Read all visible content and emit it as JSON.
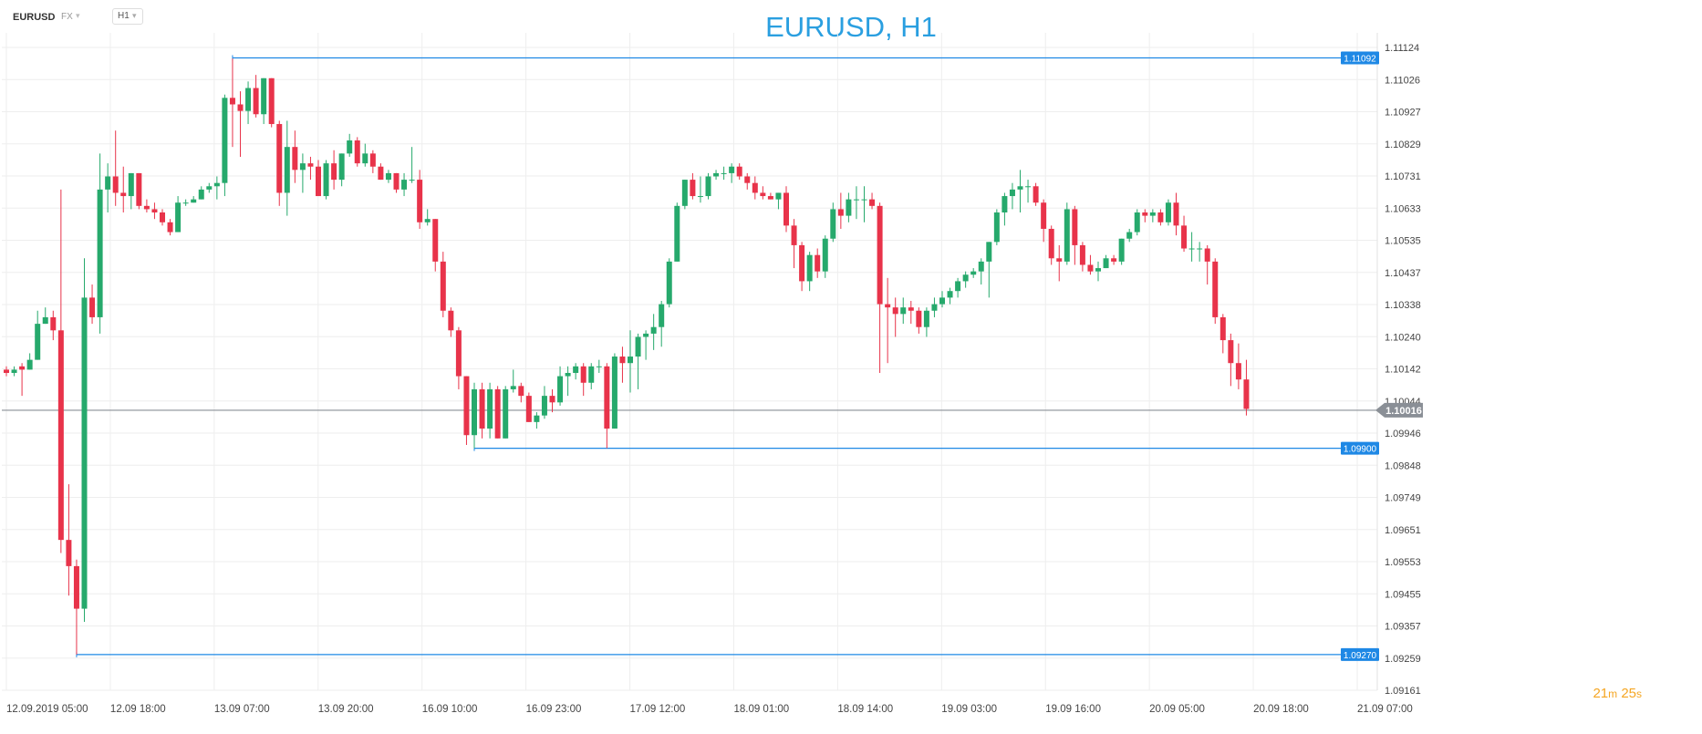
{
  "toolbar": {
    "symbol": "EURUSD",
    "market": "FX",
    "timeframe": "H1"
  },
  "colors": {
    "bullish": "#26a96c",
    "bearish": "#e8334a",
    "level": "#1e88e5",
    "current": "#8a8f96",
    "grid": "#eeeeee",
    "title": "#2a9fe0",
    "countdown": "#f5a623"
  },
  "countdown": {
    "minutes": "21",
    "minutes_unit": "m",
    "seconds": "25",
    "seconds_unit": "s"
  },
  "chart_data": {
    "type": "candlestick",
    "title": "EURUSD, H1",
    "ylim": [
      1.09161,
      1.11124
    ],
    "y_ticks": [
      "1.11124",
      "1.11026",
      "1.10927",
      "1.10829",
      "1.10731",
      "1.10633",
      "1.10535",
      "1.10437",
      "1.10338",
      "1.10240",
      "1.10142",
      "1.10044",
      "1.09946",
      "1.09848",
      "1.09749",
      "1.09651",
      "1.09553",
      "1.09455",
      "1.09357",
      "1.09259",
      "1.09161"
    ],
    "x_ticks": [
      "12.09.2019  05:00",
      "12.09  18:00",
      "13.09  07:00",
      "13.09  20:00",
      "16.09  10:00",
      "16.09  23:00",
      "17.09  12:00",
      "18.09  01:00",
      "18.09  14:00",
      "19.09  03:00",
      "19.09  16:00",
      "20.09  05:00",
      "20.09  18:00",
      "21.09  07:00"
    ],
    "levels": [
      {
        "label": "1.11092",
        "value": 1.11092,
        "from_candle": 29
      },
      {
        "label": "1.09900",
        "value": 1.099,
        "from_candle": 60
      },
      {
        "label": "1.09270",
        "value": 1.0927,
        "from_candle": 9
      }
    ],
    "current_price": {
      "label": "1.10016",
      "value": 1.10016
    },
    "grid": true,
    "candles": [
      [
        1.1014,
        1.1015,
        1.1012,
        1.1013
      ],
      [
        1.1013,
        1.1015,
        1.1012,
        1.1014
      ],
      [
        1.1015,
        1.1016,
        1.1006,
        1.1014
      ],
      [
        1.1014,
        1.1019,
        1.1014,
        1.1017
      ],
      [
        1.1017,
        1.1032,
        1.1017,
        1.1028
      ],
      [
        1.1028,
        1.1033,
        1.1028,
        1.103
      ],
      [
        1.103,
        1.1032,
        1.1023,
        1.1026
      ],
      [
        1.1026,
        1.1069,
        1.0958,
        1.0962
      ],
      [
        1.0962,
        1.0979,
        1.0945,
        1.0954
      ],
      [
        1.0954,
        1.0956,
        1.0927,
        1.0941
      ],
      [
        1.0941,
        1.1048,
        1.0937,
        1.1036
      ],
      [
        1.1036,
        1.104,
        1.1028,
        1.103
      ],
      [
        1.103,
        1.108,
        1.1025,
        1.1069
      ],
      [
        1.1069,
        1.1077,
        1.1062,
        1.1073
      ],
      [
        1.1073,
        1.1087,
        1.1064,
        1.1068
      ],
      [
        1.1068,
        1.1076,
        1.1062,
        1.1067
      ],
      [
        1.1067,
        1.1074,
        1.1063,
        1.1074
      ],
      [
        1.1074,
        1.1074,
        1.1063,
        1.1064
      ],
      [
        1.1064,
        1.1066,
        1.1062,
        1.1063
      ],
      [
        1.1063,
        1.1065,
        1.106,
        1.1062
      ],
      [
        1.1062,
        1.1063,
        1.1058,
        1.1059
      ],
      [
        1.1059,
        1.106,
        1.1055,
        1.1056
      ],
      [
        1.1056,
        1.1067,
        1.1056,
        1.1065
      ],
      [
        1.1065,
        1.1066,
        1.1064,
        1.1065
      ],
      [
        1.1065,
        1.1067,
        1.1065,
        1.1066
      ],
      [
        1.1066,
        1.107,
        1.1066,
        1.1069
      ],
      [
        1.1069,
        1.1071,
        1.1068,
        1.107
      ],
      [
        1.107,
        1.1073,
        1.1066,
        1.1071
      ],
      [
        1.1071,
        1.1098,
        1.1067,
        1.1097
      ],
      [
        1.1097,
        1.1109,
        1.1082,
        1.1095
      ],
      [
        1.1095,
        1.1099,
        1.1079,
        1.1093
      ],
      [
        1.1093,
        1.1102,
        1.1089,
        1.11
      ],
      [
        1.11,
        1.1104,
        1.1091,
        1.1092
      ],
      [
        1.1092,
        1.1103,
        1.1089,
        1.1103
      ],
      [
        1.1103,
        1.1103,
        1.1088,
        1.1089
      ],
      [
        1.1089,
        1.109,
        1.1064,
        1.1068
      ],
      [
        1.1068,
        1.109,
        1.1061,
        1.1082
      ],
      [
        1.1082,
        1.1087,
        1.1071,
        1.1075
      ],
      [
        1.1075,
        1.108,
        1.1068,
        1.1077
      ],
      [
        1.1077,
        1.1079,
        1.1072,
        1.1076
      ],
      [
        1.1076,
        1.1078,
        1.1067,
        1.1067
      ],
      [
        1.1067,
        1.1078,
        1.1066,
        1.1077
      ],
      [
        1.1077,
        1.1081,
        1.1069,
        1.1072
      ],
      [
        1.1072,
        1.108,
        1.107,
        1.108
      ],
      [
        1.108,
        1.1086,
        1.1079,
        1.1084
      ],
      [
        1.1084,
        1.1085,
        1.1076,
        1.1077
      ],
      [
        1.1077,
        1.1083,
        1.1076,
        1.108
      ],
      [
        1.108,
        1.1081,
        1.1074,
        1.1076
      ],
      [
        1.1076,
        1.1077,
        1.1072,
        1.1072
      ],
      [
        1.1072,
        1.1075,
        1.1071,
        1.1074
      ],
      [
        1.1074,
        1.1074,
        1.1068,
        1.1069
      ],
      [
        1.1069,
        1.1074,
        1.1067,
        1.1072
      ],
      [
        1.1072,
        1.1082,
        1.1071,
        1.1072
      ],
      [
        1.1072,
        1.1075,
        1.1057,
        1.1059
      ],
      [
        1.1059,
        1.1063,
        1.1058,
        1.106
      ],
      [
        1.106,
        1.106,
        1.1044,
        1.1047
      ],
      [
        1.1047,
        1.105,
        1.103,
        1.1032
      ],
      [
        1.1032,
        1.1033,
        1.1024,
        1.1026
      ],
      [
        1.1026,
        1.1027,
        1.1008,
        1.1012
      ],
      [
        1.1012,
        1.1012,
        1.0991,
        1.0994
      ],
      [
        1.0994,
        1.101,
        1.099,
        1.1008
      ],
      [
        1.1008,
        1.101,
        1.0993,
        1.0996
      ],
      [
        1.0996,
        1.101,
        1.0993,
        1.1008
      ],
      [
        1.1008,
        1.1009,
        1.0993,
        1.0993
      ],
      [
        1.0993,
        1.1009,
        1.0993,
        1.1008
      ],
      [
        1.1008,
        1.1014,
        1.1007,
        1.1009
      ],
      [
        1.1009,
        1.101,
        1.1004,
        1.1006
      ],
      [
        1.1006,
        1.1007,
        1.0998,
        1.0998
      ],
      [
        1.0998,
        1.1001,
        1.0996,
        1.1
      ],
      [
        1.1,
        1.1009,
        1.0999,
        1.1006
      ],
      [
        1.1006,
        1.1008,
        1.1001,
        1.1004
      ],
      [
        1.1004,
        1.1015,
        1.1003,
        1.1012
      ],
      [
        1.1012,
        1.1015,
        1.1006,
        1.1013
      ],
      [
        1.1013,
        1.1016,
        1.1011,
        1.1015
      ],
      [
        1.1015,
        1.1016,
        1.1006,
        1.101
      ],
      [
        1.101,
        1.1016,
        1.1008,
        1.1015
      ],
      [
        1.1015,
        1.1017,
        1.1013,
        1.1015
      ],
      [
        1.1015,
        1.1016,
        1.099,
        1.0996
      ],
      [
        1.0996,
        1.1019,
        1.0996,
        1.1018
      ],
      [
        1.1018,
        1.1021,
        1.101,
        1.1016
      ],
      [
        1.1016,
        1.1026,
        1.1007,
        1.1018
      ],
      [
        1.1018,
        1.1025,
        1.1008,
        1.1024
      ],
      [
        1.1024,
        1.1026,
        1.1017,
        1.1025
      ],
      [
        1.1025,
        1.1031,
        1.102,
        1.1027
      ],
      [
        1.1027,
        1.1035,
        1.1021,
        1.1034
      ],
      [
        1.1034,
        1.1048,
        1.1033,
        1.1047
      ],
      [
        1.1047,
        1.1065,
        1.1047,
        1.1064
      ],
      [
        1.1064,
        1.1072,
        1.1063,
        1.1072
      ],
      [
        1.1072,
        1.1074,
        1.1066,
        1.1067
      ],
      [
        1.1067,
        1.1073,
        1.1065,
        1.1067
      ],
      [
        1.1067,
        1.1074,
        1.1066,
        1.1073
      ],
      [
        1.1073,
        1.1075,
        1.1072,
        1.1074
      ],
      [
        1.1074,
        1.1076,
        1.1072,
        1.1074
      ],
      [
        1.1074,
        1.1077,
        1.1071,
        1.1076
      ],
      [
        1.1076,
        1.1077,
        1.1072,
        1.1073
      ],
      [
        1.1073,
        1.1074,
        1.1069,
        1.1071
      ],
      [
        1.1071,
        1.1073,
        1.1066,
        1.1068
      ],
      [
        1.1068,
        1.107,
        1.1066,
        1.1067
      ],
      [
        1.1067,
        1.1068,
        1.1066,
        1.1066
      ],
      [
        1.1066,
        1.1068,
        1.1063,
        1.1068
      ],
      [
        1.1068,
        1.107,
        1.1056,
        1.1058
      ],
      [
        1.1058,
        1.106,
        1.1045,
        1.1052
      ],
      [
        1.1052,
        1.1053,
        1.1038,
        1.1041
      ],
      [
        1.1041,
        1.105,
        1.1038,
        1.1049
      ],
      [
        1.1049,
        1.1051,
        1.1042,
        1.1044
      ],
      [
        1.1044,
        1.1055,
        1.1042,
        1.1054
      ],
      [
        1.1054,
        1.1065,
        1.1053,
        1.1063
      ],
      [
        1.1063,
        1.1068,
        1.1057,
        1.1061
      ],
      [
        1.1061,
        1.1068,
        1.1059,
        1.1066
      ],
      [
        1.1066,
        1.107,
        1.106,
        1.1066
      ],
      [
        1.1066,
        1.107,
        1.1059,
        1.1066
      ],
      [
        1.1066,
        1.1068,
        1.1063,
        1.1064
      ],
      [
        1.1064,
        1.1065,
        1.1013,
        1.1034
      ],
      [
        1.1034,
        1.1042,
        1.1016,
        1.1033
      ],
      [
        1.1033,
        1.1036,
        1.1024,
        1.1031
      ],
      [
        1.1031,
        1.1036,
        1.1028,
        1.1033
      ],
      [
        1.1033,
        1.1035,
        1.1028,
        1.1032
      ],
      [
        1.1032,
        1.1033,
        1.1025,
        1.1027
      ],
      [
        1.1027,
        1.1033,
        1.1024,
        1.1032
      ],
      [
        1.1032,
        1.1036,
        1.103,
        1.1034
      ],
      [
        1.1034,
        1.1038,
        1.1033,
        1.1036
      ],
      [
        1.1036,
        1.1039,
        1.1034,
        1.1038
      ],
      [
        1.1038,
        1.1042,
        1.1036,
        1.1041
      ],
      [
        1.1041,
        1.1044,
        1.1039,
        1.1043
      ],
      [
        1.1043,
        1.1045,
        1.1042,
        1.1044
      ],
      [
        1.1044,
        1.1048,
        1.104,
        1.1047
      ],
      [
        1.1047,
        1.1053,
        1.1036,
        1.1053
      ],
      [
        1.1053,
        1.1063,
        1.1052,
        1.1062
      ],
      [
        1.1062,
        1.1068,
        1.1058,
        1.1067
      ],
      [
        1.1067,
        1.1071,
        1.1063,
        1.1069
      ],
      [
        1.1069,
        1.1075,
        1.1062,
        1.107
      ],
      [
        1.107,
        1.1072,
        1.1065,
        1.107
      ],
      [
        1.107,
        1.1071,
        1.1064,
        1.1065
      ],
      [
        1.1065,
        1.1066,
        1.1053,
        1.1057
      ],
      [
        1.1057,
        1.1058,
        1.1046,
        1.1048
      ],
      [
        1.1048,
        1.1052,
        1.1041,
        1.1047
      ],
      [
        1.1047,
        1.1065,
        1.1046,
        1.1063
      ],
      [
        1.1063,
        1.1064,
        1.1046,
        1.1052
      ],
      [
        1.1052,
        1.1053,
        1.1044,
        1.1046
      ],
      [
        1.1046,
        1.1049,
        1.1043,
        1.1044
      ],
      [
        1.1044,
        1.1047,
        1.1041,
        1.1045
      ],
      [
        1.1045,
        1.1049,
        1.1045,
        1.1048
      ],
      [
        1.1048,
        1.1049,
        1.1046,
        1.1047
      ],
      [
        1.1047,
        1.1054,
        1.1046,
        1.1054
      ],
      [
        1.1054,
        1.1057,
        1.1053,
        1.1056
      ],
      [
        1.1056,
        1.1063,
        1.1055,
        1.1062
      ],
      [
        1.1062,
        1.1063,
        1.1059,
        1.1061
      ],
      [
        1.1061,
        1.1063,
        1.1059,
        1.1062
      ],
      [
        1.1062,
        1.1063,
        1.1058,
        1.1059
      ],
      [
        1.1059,
        1.1066,
        1.1058,
        1.1065
      ],
      [
        1.1065,
        1.1068,
        1.1055,
        1.1058
      ],
      [
        1.1058,
        1.1061,
        1.105,
        1.1051
      ],
      [
        1.1051,
        1.1056,
        1.1047,
        1.1051
      ],
      [
        1.1051,
        1.1053,
        1.1047,
        1.1051
      ],
      [
        1.1051,
        1.1052,
        1.104,
        1.1047
      ],
      [
        1.1047,
        1.1048,
        1.1028,
        1.103
      ],
      [
        1.103,
        1.1031,
        1.1019,
        1.1023
      ],
      [
        1.1023,
        1.1025,
        1.1009,
        1.1016
      ],
      [
        1.1016,
        1.1022,
        1.1008,
        1.1011
      ],
      [
        1.1011,
        1.1017,
        1.1,
        1.1002
      ]
    ]
  }
}
